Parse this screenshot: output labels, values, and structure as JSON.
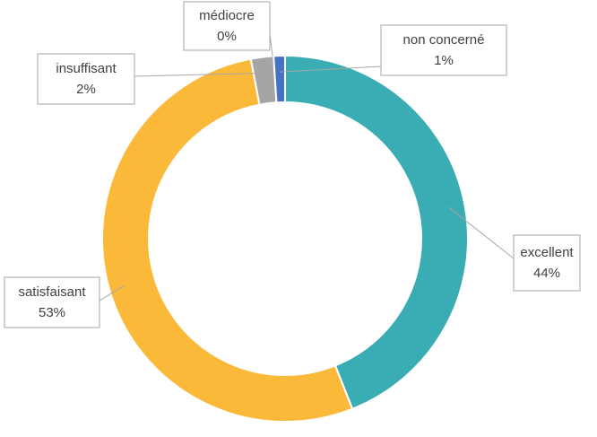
{
  "chart_data": {
    "type": "donut",
    "categories": [
      "excellent",
      "satisfaisant",
      "insuffisant",
      "médiocre",
      "non concerné"
    ],
    "values": [
      44,
      53,
      2,
      0,
      1
    ],
    "value_labels": [
      "44%",
      "53%",
      "2%",
      "0%",
      "1%"
    ],
    "colors": [
      "#3aacb3",
      "#fbb93a",
      "#a5a5a5",
      "#ed7d31",
      "#4472c4"
    ]
  }
}
